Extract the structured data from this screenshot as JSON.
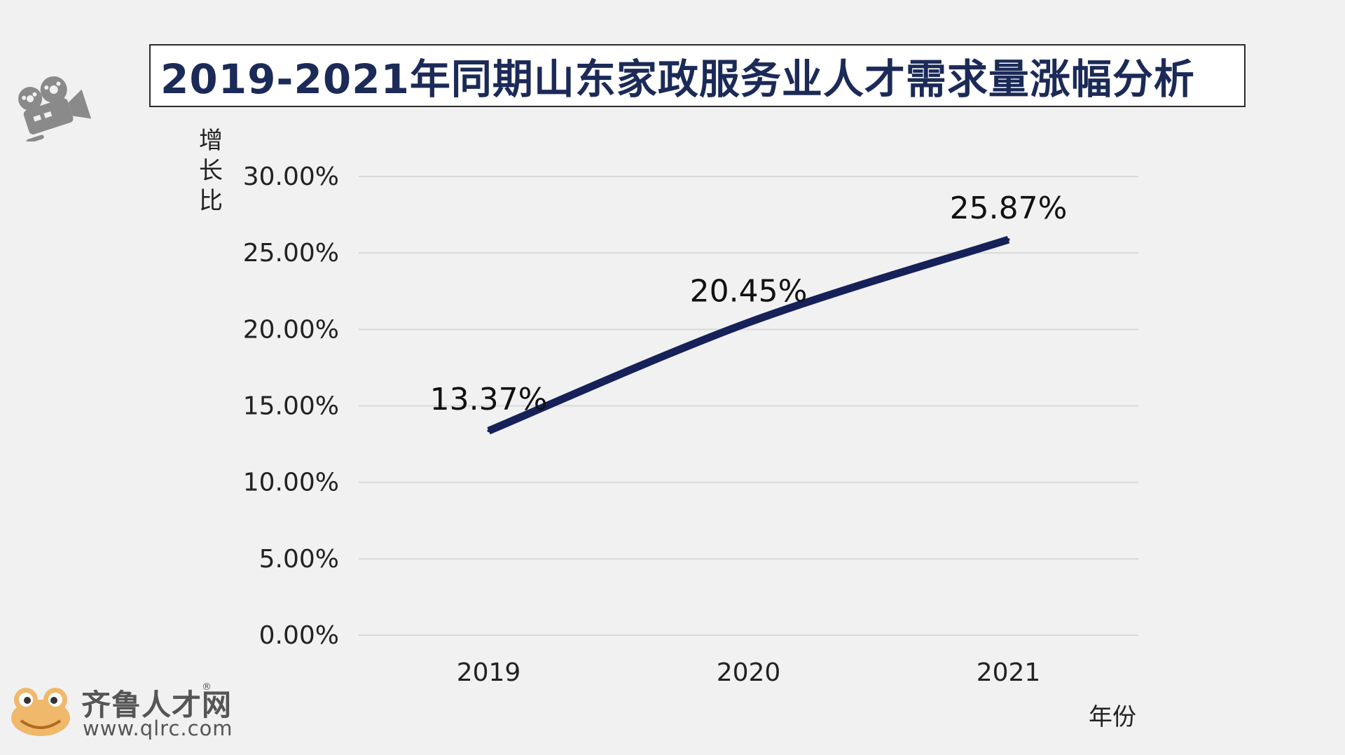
{
  "chart_data": {
    "type": "line",
    "title": "2019-2021年同期山东家政服务业人才需求量涨幅分析",
    "ylabel": "增长比",
    "ylabel_chars": [
      "增",
      "长",
      "比"
    ],
    "xlabel": "年份",
    "categories": [
      "2019",
      "2020",
      "2021"
    ],
    "series": [
      {
        "values": [
          13.37,
          20.45,
          25.87
        ],
        "labels": [
          "13.37%",
          "20.45%",
          "25.87%"
        ]
      }
    ],
    "ylim": [
      0,
      30
    ],
    "yticks": [
      "0.00%",
      "5.00%",
      "10.00%",
      "15.00%",
      "20.00%",
      "25.00%",
      "30.00%"
    ],
    "grid": true,
    "line_color": "#16215a"
  },
  "decor": {
    "camera_icon": "film-camera-icon",
    "logo_icon": "frog-logo-icon",
    "brand_name": "齐鲁人才网",
    "brand_mark": "®",
    "brand_url": "www.qlrc.com"
  }
}
